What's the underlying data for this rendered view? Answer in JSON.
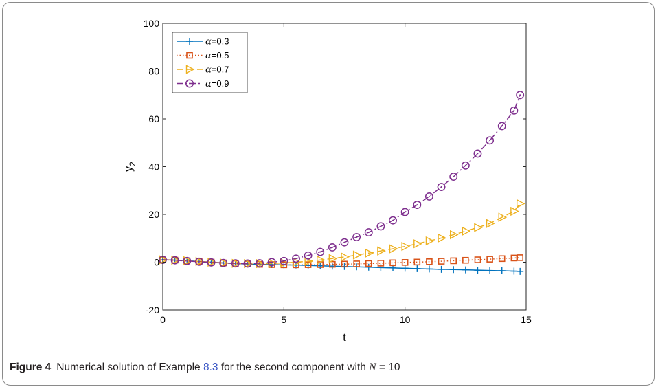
{
  "chart_data": {
    "type": "line",
    "title": "",
    "xlabel": "t",
    "ylabel": "y",
    "ylabel_subscript": "2",
    "xlim": [
      0,
      15
    ],
    "ylim": [
      -20,
      100
    ],
    "xticks": [
      0,
      5,
      10,
      15
    ],
    "yticks": [
      -20,
      0,
      20,
      40,
      60,
      80,
      100
    ],
    "xtick_labels": [
      "0",
      "5",
      "10",
      "15"
    ],
    "ytick_labels": [
      "-20",
      "0",
      "20",
      "40",
      "60",
      "80",
      "100"
    ],
    "grid": false,
    "legend_position": "top-left",
    "series": [
      {
        "name_symbol": "α",
        "name_value": "=0.3",
        "color": "#0072bd",
        "line_style": "solid",
        "marker": "plus",
        "x": [
          0,
          0.5,
          1,
          1.5,
          2,
          2.5,
          3,
          3.5,
          4,
          4.5,
          5,
          5.5,
          6,
          6.5,
          7,
          7.5,
          8,
          8.5,
          9,
          9.5,
          10,
          10.5,
          11,
          11.5,
          12,
          12.5,
          13,
          13.5,
          14,
          14.5,
          14.75
        ],
        "y": [
          1.0,
          0.85,
          0.6,
          0.3,
          0.0,
          -0.3,
          -0.55,
          -0.75,
          -0.9,
          -1.0,
          -1.1,
          -1.2,
          -1.35,
          -1.5,
          -1.65,
          -1.8,
          -1.95,
          -2.1,
          -2.25,
          -2.4,
          -2.55,
          -2.7,
          -2.85,
          -3.0,
          -3.1,
          -3.2,
          -3.35,
          -3.5,
          -3.6,
          -3.75,
          -3.85
        ]
      },
      {
        "name_symbol": "α",
        "name_value": "=0.5",
        "color": "#d95319",
        "line_style": "dotted",
        "marker": "square",
        "x": [
          0,
          0.5,
          1,
          1.5,
          2,
          2.5,
          3,
          3.5,
          4,
          4.5,
          5,
          5.5,
          6,
          6.5,
          7,
          7.5,
          8,
          8.5,
          9,
          9.5,
          10,
          10.5,
          11,
          11.5,
          12,
          12.5,
          13,
          13.5,
          14,
          14.5,
          14.75
        ],
        "y": [
          1.0,
          0.85,
          0.6,
          0.3,
          0.0,
          -0.3,
          -0.55,
          -0.75,
          -0.9,
          -1.0,
          -1.1,
          -1.1,
          -1.05,
          -1.0,
          -0.9,
          -0.8,
          -0.7,
          -0.55,
          -0.4,
          -0.25,
          -0.1,
          0.05,
          0.2,
          0.4,
          0.6,
          0.8,
          1.0,
          1.25,
          1.5,
          1.75,
          1.9
        ]
      },
      {
        "name_symbol": "α",
        "name_value": "=0.7",
        "color": "#edb120",
        "line_style": "dashed",
        "marker": "triangle-right",
        "x": [
          0,
          0.5,
          1,
          1.5,
          2,
          2.5,
          3,
          3.5,
          4,
          4.5,
          5,
          5.5,
          6,
          6.5,
          7,
          7.5,
          8,
          8.5,
          9,
          9.5,
          10,
          10.5,
          11,
          11.5,
          12,
          12.5,
          13,
          13.5,
          14,
          14.5,
          14.75
        ],
        "y": [
          1.0,
          0.85,
          0.6,
          0.3,
          0.0,
          -0.3,
          -0.5,
          -0.6,
          -0.6,
          -0.5,
          -0.3,
          0.0,
          0.4,
          0.9,
          1.5,
          2.2,
          3.0,
          3.8,
          4.7,
          5.6,
          6.6,
          7.7,
          8.9,
          10.1,
          11.5,
          13.0,
          14.5,
          16.2,
          18.8,
          21.3,
          24.5
        ]
      },
      {
        "name_symbol": "α",
        "name_value": "=0.9",
        "color": "#7e2f8e",
        "line_style": "dashdot",
        "marker": "circle-dot",
        "x": [
          0,
          0.5,
          1,
          1.5,
          2,
          2.5,
          3,
          3.5,
          4,
          4.5,
          5,
          5.5,
          6,
          6.5,
          7,
          7.5,
          8,
          8.5,
          9,
          9.5,
          10,
          10.5,
          11,
          11.5,
          12,
          12.5,
          13,
          13.5,
          14,
          14.5,
          14.75
        ],
        "y": [
          1.0,
          0.8,
          0.5,
          0.2,
          -0.1,
          -0.35,
          -0.5,
          -0.55,
          -0.45,
          0.0,
          0.5,
          1.5,
          2.8,
          4.3,
          6.2,
          8.3,
          10.5,
          12.5,
          15.0,
          17.5,
          21.0,
          24.0,
          27.5,
          31.5,
          35.8,
          40.5,
          45.5,
          51.0,
          57.0,
          63.5,
          70.0
        ]
      }
    ]
  },
  "caption": {
    "label": "Figure 4",
    "text_before_ref": "Numerical solution of Example ",
    "ref": "8.3",
    "text_after_ref": " for the second component with ",
    "math_var": "N",
    "math_rest": " = 10"
  }
}
